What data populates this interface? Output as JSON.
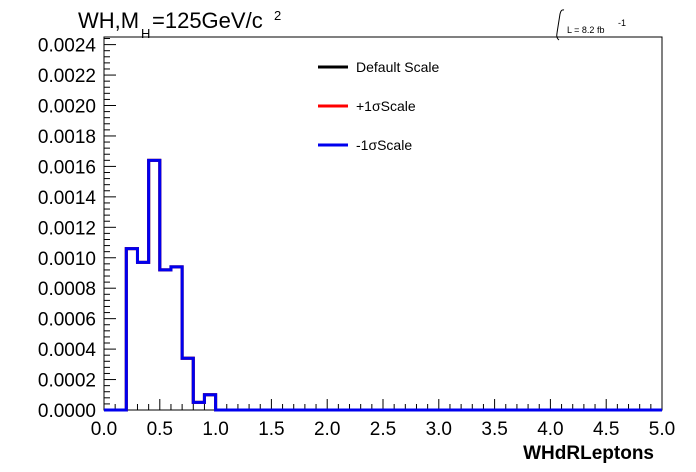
{
  "chart_data": {
    "type": "line",
    "title_main": "WH,M",
    "title_sub": "H",
    "title_rest": "=125GeV/c",
    "title_sup": "2",
    "lumi_label": "L = 8.2 fb",
    "lumi_sup": "-1",
    "xlabel": "WHdRLeptons",
    "ylabel": "",
    "xlim": [
      0.0,
      5.0
    ],
    "ylim": [
      0.0,
      0.00245
    ],
    "x_ticks": [
      "0.0",
      "0.5",
      "1.0",
      "1.5",
      "2.0",
      "2.5",
      "3.0",
      "3.5",
      "4.0",
      "4.5",
      "5.0"
    ],
    "y_ticks": [
      "0.0000",
      "0.0002",
      "0.0004",
      "0.0006",
      "0.0008",
      "0.0010",
      "0.0012",
      "0.0014",
      "0.0016",
      "0.0018",
      "0.0020",
      "0.0022",
      "0.0024"
    ],
    "bin_edges": [
      0.0,
      0.1,
      0.2,
      0.3,
      0.4,
      0.5,
      0.6,
      0.7,
      0.8,
      0.9,
      1.0,
      5.0
    ],
    "series": [
      {
        "name": "Default Scale",
        "color": "#000000",
        "values": [
          0,
          0,
          0.00106,
          0.00097,
          0.00164,
          0.00092,
          0.00094,
          0.00034,
          5e-05,
          0.0001,
          0
        ]
      },
      {
        "name": "+1σScale",
        "color": "#ff0000",
        "values": [
          0,
          0,
          0.00106,
          0.00097,
          0.00164,
          0.00092,
          0.00094,
          0.00034,
          5e-05,
          0.0001,
          0
        ]
      },
      {
        "name": "-1σScale",
        "color": "#0000ee",
        "values": [
          0,
          0,
          0.00106,
          0.00097,
          0.00164,
          0.00092,
          0.00094,
          0.00034,
          5e-05,
          0.0001,
          0
        ]
      }
    ],
    "legend_position": "top-right",
    "grid": false
  }
}
